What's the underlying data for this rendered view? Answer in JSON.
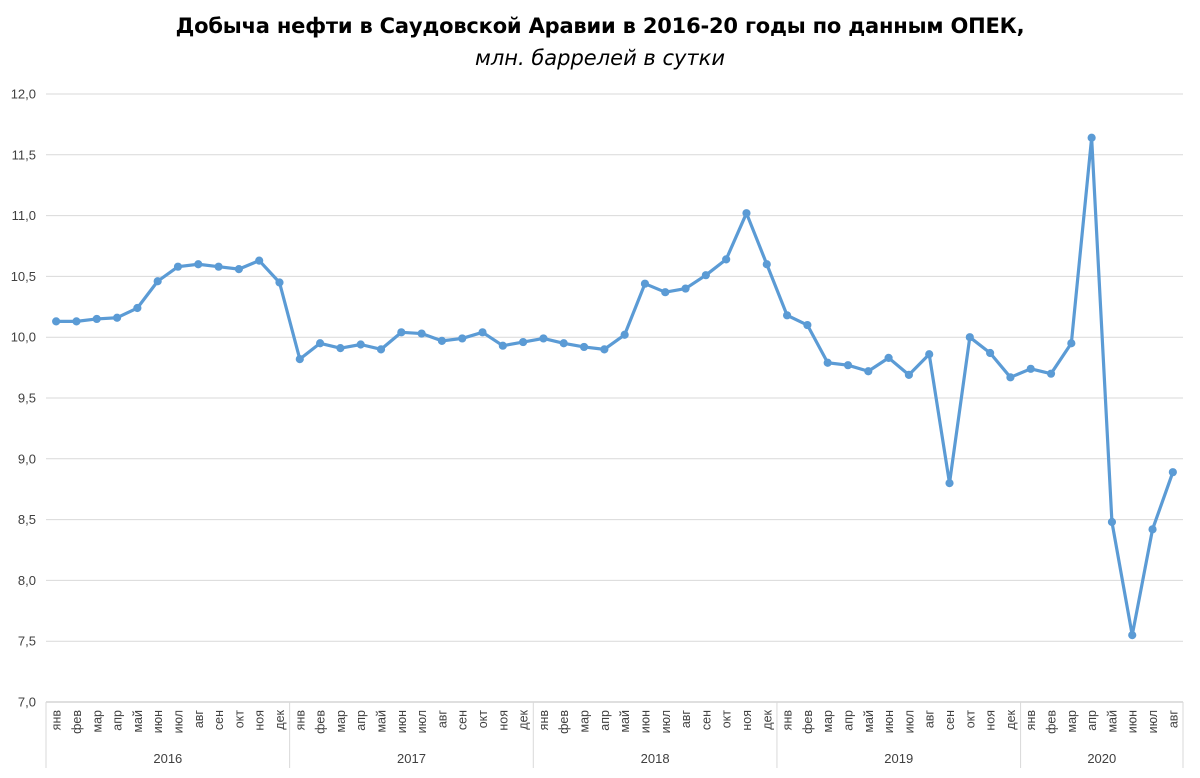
{
  "chart_data": {
    "type": "line",
    "title": "Добыча нефти в Саудовской Аравии в 2016-20 годы по данным ОПЕК,",
    "subtitle": "млн. баррелей в сутки",
    "ylim": [
      7.0,
      12.0
    ],
    "y_ticks": [
      "7,0",
      "7,5",
      "8,0",
      "8,5",
      "9,0",
      "9,5",
      "10,0",
      "10,5",
      "11,0",
      "11,5",
      "12,0"
    ],
    "grid": true,
    "line_color": "#5B9BD5",
    "years": [
      {
        "label": "2016",
        "months": 12
      },
      {
        "label": "2017",
        "months": 12
      },
      {
        "label": "2018",
        "months": 12
      },
      {
        "label": "2019",
        "months": 12
      },
      {
        "label": "2020",
        "months": 8
      }
    ],
    "categories": [
      "янв",
      "фев",
      "мар",
      "апр",
      "май",
      "июн",
      "июл",
      "авг",
      "сен",
      "окт",
      "ноя",
      "дек",
      "янв",
      "фев",
      "мар",
      "апр",
      "май",
      "июн",
      "июл",
      "авг",
      "сен",
      "окт",
      "ноя",
      "дек",
      "янв",
      "фев",
      "мар",
      "апр",
      "май",
      "июн",
      "июл",
      "авг",
      "сен",
      "окт",
      "ноя",
      "дек",
      "янв",
      "фев",
      "мар",
      "апр",
      "май",
      "июн",
      "июл",
      "авг",
      "сен",
      "окт",
      "ноя",
      "дек",
      "янв",
      "фев",
      "мар",
      "апр",
      "май",
      "июн",
      "июл",
      "авг"
    ],
    "series": [
      {
        "values": [
          10.13,
          10.13,
          10.15,
          10.16,
          10.24,
          10.46,
          10.58,
          10.6,
          10.58,
          10.56,
          10.63,
          10.45,
          9.82,
          9.95,
          9.91,
          9.94,
          9.9,
          10.04,
          10.03,
          9.97,
          9.99,
          10.04,
          9.93,
          9.96,
          9.99,
          9.95,
          9.92,
          9.9,
          10.02,
          10.44,
          10.37,
          10.4,
          10.51,
          10.64,
          11.02,
          10.6,
          10.18,
          10.1,
          9.79,
          9.77,
          9.72,
          9.83,
          9.69,
          9.86,
          8.8,
          10.0,
          9.87,
          9.67,
          9.74,
          9.7,
          9.95,
          11.64,
          8.48,
          7.55,
          8.42,
          8.89
        ]
      }
    ]
  }
}
